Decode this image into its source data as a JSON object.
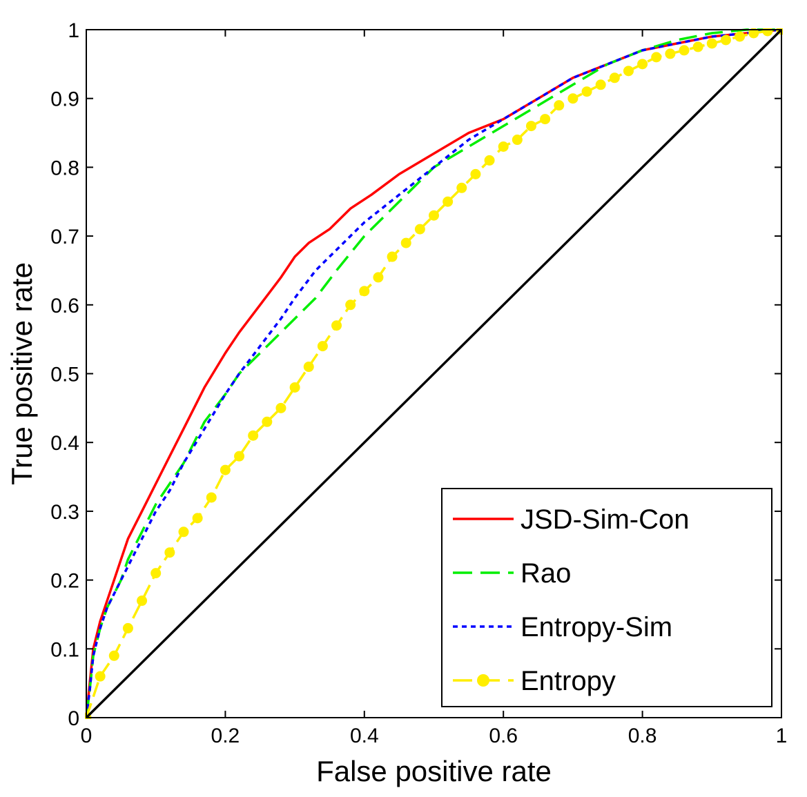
{
  "chart_data": {
    "type": "line",
    "xlabel": "False positive rate",
    "ylabel": "True positive rate",
    "xlim": [
      0,
      1
    ],
    "ylim": [
      0,
      1
    ],
    "xticks": [
      "0",
      "0.2",
      "0.4",
      "0.6",
      "0.8",
      "1"
    ],
    "yticks": [
      "0",
      "0.1",
      "0.2",
      "0.3",
      "0.4",
      "0.5",
      "0.6",
      "0.7",
      "0.8",
      "0.9",
      "1"
    ],
    "grid": false,
    "legend_position": "bottom-right",
    "series": [
      {
        "name": "JSD-Sim-Con",
        "color": "#ff0000",
        "style": "solid",
        "x": [
          0,
          0.005,
          0.01,
          0.02,
          0.03,
          0.04,
          0.05,
          0.06,
          0.08,
          0.1,
          0.12,
          0.14,
          0.17,
          0.2,
          0.22,
          0.25,
          0.28,
          0.3,
          0.32,
          0.35,
          0.38,
          0.41,
          0.45,
          0.5,
          0.55,
          0.6,
          0.65,
          0.7,
          0.75,
          0.8,
          0.85,
          0.9,
          0.95,
          1
        ],
        "y": [
          0,
          0.05,
          0.1,
          0.14,
          0.17,
          0.2,
          0.23,
          0.26,
          0.3,
          0.34,
          0.38,
          0.42,
          0.48,
          0.53,
          0.56,
          0.6,
          0.64,
          0.67,
          0.69,
          0.71,
          0.74,
          0.76,
          0.79,
          0.82,
          0.85,
          0.87,
          0.9,
          0.93,
          0.95,
          0.97,
          0.98,
          0.99,
          0.995,
          1
        ]
      },
      {
        "name": "Rao",
        "color": "#00ee00",
        "style": "dashed",
        "x": [
          0,
          0.005,
          0.01,
          0.02,
          0.03,
          0.04,
          0.05,
          0.06,
          0.08,
          0.1,
          0.12,
          0.14,
          0.17,
          0.2,
          0.22,
          0.25,
          0.28,
          0.3,
          0.33,
          0.36,
          0.4,
          0.45,
          0.5,
          0.55,
          0.6,
          0.65,
          0.7,
          0.75,
          0.8,
          0.85,
          0.9,
          0.95,
          1
        ],
        "y": [
          0,
          0.04,
          0.09,
          0.13,
          0.16,
          0.18,
          0.2,
          0.23,
          0.27,
          0.31,
          0.34,
          0.37,
          0.43,
          0.47,
          0.5,
          0.53,
          0.56,
          0.58,
          0.61,
          0.65,
          0.7,
          0.75,
          0.8,
          0.83,
          0.86,
          0.89,
          0.92,
          0.95,
          0.97,
          0.985,
          0.995,
          1,
          1
        ]
      },
      {
        "name": "Entropy-Sim",
        "color": "#0000ff",
        "style": "dotted",
        "x": [
          0,
          0.005,
          0.01,
          0.02,
          0.03,
          0.04,
          0.05,
          0.06,
          0.08,
          0.1,
          0.12,
          0.14,
          0.17,
          0.2,
          0.22,
          0.25,
          0.28,
          0.3,
          0.33,
          0.36,
          0.4,
          0.45,
          0.5,
          0.55,
          0.6,
          0.65,
          0.7,
          0.75,
          0.8,
          0.85,
          0.9,
          0.95,
          1
        ],
        "y": [
          0,
          0.04,
          0.09,
          0.13,
          0.16,
          0.18,
          0.2,
          0.22,
          0.26,
          0.3,
          0.33,
          0.37,
          0.42,
          0.47,
          0.5,
          0.54,
          0.58,
          0.61,
          0.65,
          0.68,
          0.72,
          0.76,
          0.8,
          0.84,
          0.87,
          0.9,
          0.93,
          0.95,
          0.97,
          0.98,
          0.99,
          0.995,
          1
        ]
      },
      {
        "name": "Entropy",
        "color": "#ffee00",
        "style": "dashed-markers",
        "x": [
          0,
          0.02,
          0.04,
          0.06,
          0.08,
          0.1,
          0.12,
          0.14,
          0.16,
          0.18,
          0.2,
          0.22,
          0.24,
          0.26,
          0.28,
          0.3,
          0.32,
          0.34,
          0.36,
          0.38,
          0.4,
          0.42,
          0.44,
          0.46,
          0.48,
          0.5,
          0.52,
          0.54,
          0.56,
          0.58,
          0.6,
          0.62,
          0.64,
          0.66,
          0.68,
          0.7,
          0.72,
          0.74,
          0.76,
          0.78,
          0.8,
          0.82,
          0.84,
          0.86,
          0.88,
          0.9,
          0.92,
          0.94,
          0.96,
          0.98,
          1
        ],
        "y": [
          0,
          0.06,
          0.09,
          0.13,
          0.17,
          0.21,
          0.24,
          0.27,
          0.29,
          0.32,
          0.36,
          0.38,
          0.41,
          0.43,
          0.45,
          0.48,
          0.51,
          0.54,
          0.57,
          0.6,
          0.62,
          0.64,
          0.67,
          0.69,
          0.71,
          0.73,
          0.75,
          0.77,
          0.79,
          0.81,
          0.83,
          0.84,
          0.86,
          0.87,
          0.89,
          0.9,
          0.91,
          0.92,
          0.93,
          0.94,
          0.95,
          0.96,
          0.965,
          0.97,
          0.975,
          0.98,
          0.985,
          0.99,
          0.995,
          0.998,
          1
        ]
      },
      {
        "name": "",
        "color": "#000000",
        "style": "solid",
        "legend": false,
        "x": [
          0,
          1
        ],
        "y": [
          0,
          1
        ]
      }
    ]
  }
}
